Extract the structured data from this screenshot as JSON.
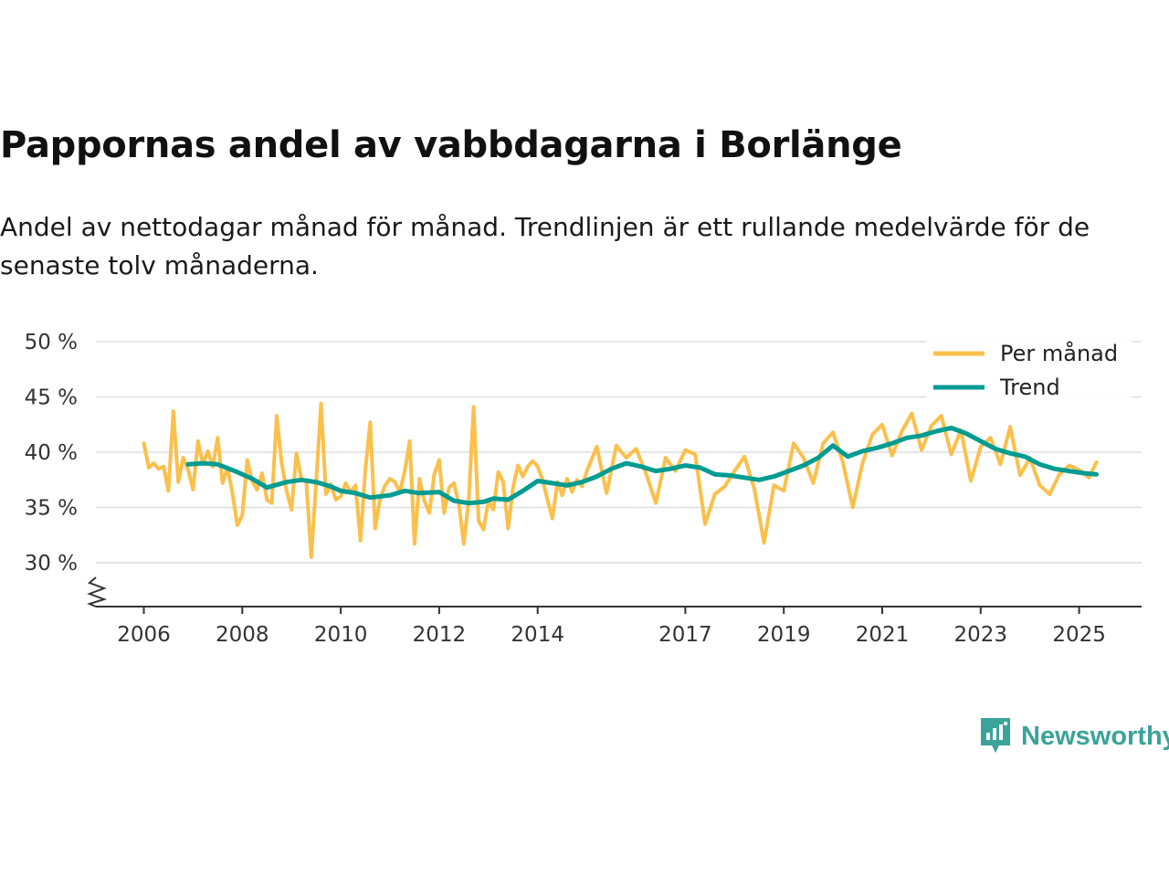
{
  "title": "Pappornas andel av vabbdagarna i Borlänge",
  "subtitle": "Andel av nettodagar månad för månad. Trendlinjen är ett rullande medelvärde för de senaste tolv månaderna.",
  "brand": {
    "name": "Newsworthy",
    "icon": "newsworthy-logo-icon"
  },
  "colors": {
    "monthly": "#fbc04b",
    "trend": "#009b91",
    "grid": "#dedede",
    "axis": "#333333",
    "brand": "#3aa39a"
  },
  "chart_data": {
    "type": "line",
    "title": "Pappornas andel av vabbdagarna i Borlänge",
    "xlabel": "",
    "ylabel": "",
    "xlim": [
      2005.5,
      2025.8
    ],
    "ylim": [
      26,
      50
    ],
    "y_ticks": [
      30,
      35,
      40,
      45,
      50
    ],
    "y_tick_labels": [
      "30 %",
      "35 %",
      "40 %",
      "45 %",
      "50 %"
    ],
    "x_ticks": [
      2006,
      2008,
      2010,
      2012,
      2014,
      2017,
      2019,
      2021,
      2023,
      2025
    ],
    "x_tick_labels": [
      "2006",
      "2008",
      "2010",
      "2012",
      "2014",
      "2017",
      "2019",
      "2021",
      "2023",
      "2025"
    ],
    "legend": {
      "position": "top-right",
      "entries": [
        "Per månad",
        "Trend"
      ]
    },
    "series": [
      {
        "name": "Per månad",
        "x": [
          2006.0,
          2006.1,
          2006.2,
          2006.3,
          2006.4,
          2006.5,
          2006.6,
          2006.7,
          2006.8,
          2006.9,
          2007.0,
          2007.1,
          2007.2,
          2007.3,
          2007.4,
          2007.5,
          2007.6,
          2007.7,
          2007.8,
          2007.9,
          2008.0,
          2008.1,
          2008.2,
          2008.3,
          2008.4,
          2008.5,
          2008.6,
          2008.7,
          2008.8,
          2008.9,
          2009.0,
          2009.1,
          2009.2,
          2009.3,
          2009.4,
          2009.5,
          2009.6,
          2009.7,
          2009.8,
          2009.9,
          2010.0,
          2010.1,
          2010.2,
          2010.3,
          2010.4,
          2010.5,
          2010.6,
          2010.7,
          2010.8,
          2010.9,
          2011.0,
          2011.1,
          2011.2,
          2011.3,
          2011.4,
          2011.5,
          2011.6,
          2011.7,
          2011.8,
          2011.9,
          2012.0,
          2012.1,
          2012.2,
          2012.3,
          2012.4,
          2012.5,
          2012.6,
          2012.7,
          2012.8,
          2012.9,
          2013.0,
          2013.1,
          2013.2,
          2013.3,
          2013.4,
          2013.5,
          2013.6,
          2013.7,
          2013.8,
          2013.9,
          2014.0,
          2014.1,
          2014.2,
          2014.3,
          2014.4,
          2014.5,
          2014.6,
          2014.7,
          2014.8,
          2014.9,
          2015.0,
          2015.2,
          2015.4,
          2015.6,
          2015.8,
          2016.0,
          2016.2,
          2016.4,
          2016.6,
          2016.8,
          2017.0,
          2017.2,
          2017.4,
          2017.6,
          2017.8,
          2018.0,
          2018.2,
          2018.4,
          2018.6,
          2018.8,
          2019.0,
          2019.2,
          2019.4,
          2019.6,
          2019.8,
          2020.0,
          2020.2,
          2020.4,
          2020.6,
          2020.8,
          2021.0,
          2021.2,
          2021.4,
          2021.6,
          2021.8,
          2022.0,
          2022.2,
          2022.4,
          2022.6,
          2022.8,
          2023.0,
          2023.2,
          2023.4,
          2023.6,
          2023.8,
          2024.0,
          2024.2,
          2024.4,
          2024.6,
          2024.8,
          2025.0,
          2025.2,
          2025.35
        ],
        "y": [
          40.8,
          38.6,
          39.0,
          38.5,
          38.7,
          36.5,
          43.7,
          37.3,
          39.5,
          38.4,
          36.6,
          41.0,
          38.9,
          40.1,
          38.7,
          41.3,
          37.2,
          38.6,
          36.3,
          33.4,
          34.3,
          39.3,
          37.4,
          36.6,
          38.1,
          35.7,
          35.4,
          43.3,
          39.0,
          36.5,
          34.8,
          39.9,
          37.6,
          37.3,
          30.5,
          37.2,
          44.4,
          36.2,
          37.1,
          35.7,
          36.0,
          37.2,
          36.4,
          37.0,
          32.0,
          38.4,
          42.7,
          33.1,
          35.8,
          37.0,
          37.6,
          37.3,
          36.4,
          38.3,
          41.0,
          31.7,
          37.6,
          35.6,
          34.5,
          38.0,
          39.3,
          34.5,
          36.8,
          37.2,
          35.3,
          31.7,
          35.6,
          44.1,
          33.8,
          33.0,
          35.6,
          34.8,
          38.2,
          37.3,
          33.1,
          36.8,
          38.8,
          37.8,
          38.7,
          39.2,
          38.7,
          37.5,
          35.7,
          34.0,
          37.3,
          36.1,
          37.6,
          36.4,
          37.5,
          36.9,
          38.3,
          40.5,
          36.3,
          40.6,
          39.5,
          40.3,
          38.1,
          35.4,
          39.5,
          38.3,
          40.2,
          39.8,
          33.5,
          36.2,
          36.9,
          38.3,
          39.6,
          36.7,
          31.8,
          37.0,
          36.5,
          40.8,
          39.5,
          37.2,
          40.8,
          41.8,
          39.1,
          35.0,
          39.0,
          41.6,
          42.5,
          39.7,
          41.9,
          43.5,
          40.2,
          42.4,
          43.3,
          39.8,
          42.0,
          37.4,
          40.5,
          41.3,
          38.9,
          42.3,
          37.9,
          39.5,
          37.0,
          36.2,
          38.0,
          38.8,
          38.4,
          37.7,
          39.1
        ],
        "color": "#fbc04b"
      },
      {
        "name": "Trend",
        "x": [
          2006.9,
          2007.2,
          2007.5,
          2007.9,
          2008.2,
          2008.5,
          2008.9,
          2009.2,
          2009.5,
          2009.8,
          2010.0,
          2010.3,
          2010.6,
          2011.0,
          2011.3,
          2011.6,
          2012.0,
          2012.3,
          2012.6,
          2012.9,
          2013.1,
          2013.4,
          2013.7,
          2014.0,
          2014.3,
          2014.6,
          2014.9,
          2015.2,
          2015.5,
          2015.8,
          2016.1,
          2016.4,
          2016.7,
          2017.0,
          2017.3,
          2017.6,
          2017.9,
          2018.2,
          2018.5,
          2018.8,
          2019.1,
          2019.4,
          2019.7,
          2020.0,
          2020.3,
          2020.6,
          2020.9,
          2021.2,
          2021.5,
          2021.8,
          2022.1,
          2022.4,
          2022.7,
          2023.0,
          2023.3,
          2023.6,
          2023.9,
          2024.2,
          2024.5,
          2024.8,
          2025.1,
          2025.35
        ],
        "y": [
          38.9,
          39.0,
          38.9,
          38.2,
          37.6,
          36.8,
          37.3,
          37.5,
          37.3,
          36.9,
          36.5,
          36.3,
          35.9,
          36.1,
          36.5,
          36.3,
          36.4,
          35.6,
          35.4,
          35.5,
          35.8,
          35.7,
          36.5,
          37.4,
          37.2,
          37.0,
          37.3,
          37.8,
          38.5,
          39.0,
          38.7,
          38.3,
          38.5,
          38.8,
          38.6,
          38.0,
          37.9,
          37.7,
          37.5,
          37.8,
          38.3,
          38.8,
          39.5,
          40.6,
          39.6,
          40.1,
          40.4,
          40.8,
          41.3,
          41.5,
          41.9,
          42.2,
          41.7,
          41.0,
          40.3,
          39.9,
          39.6,
          38.9,
          38.5,
          38.3,
          38.1,
          38.0
        ],
        "color": "#009b91"
      }
    ]
  }
}
